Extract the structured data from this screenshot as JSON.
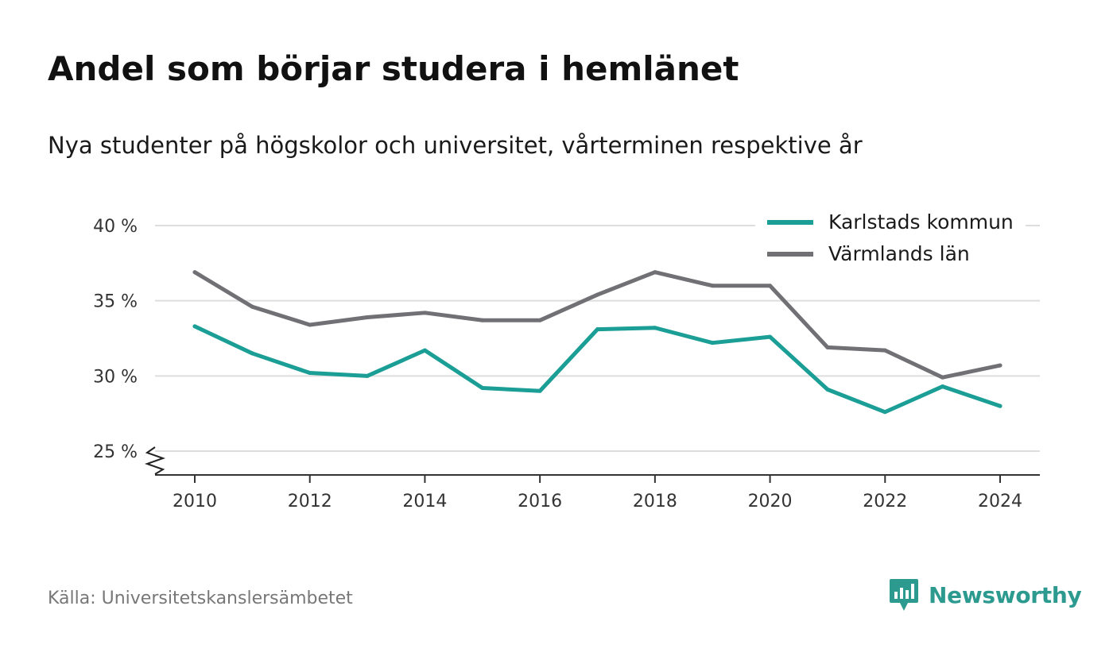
{
  "title": "Andel som börjar studera i hemlänet",
  "subtitle": "Nya studenter på högskolor och universitet, vårterminen respektive år",
  "source": "Källa: Universitetskanslersämbetet",
  "brand": {
    "name": "Newsworthy",
    "icon": "newsworthy-logo-icon",
    "color": "#2d9a8f"
  },
  "chart_data": {
    "type": "line",
    "x": [
      2010,
      2011,
      2012,
      2013,
      2014,
      2015,
      2016,
      2017,
      2018,
      2019,
      2020,
      2021,
      2022,
      2023,
      2024
    ],
    "x_ticks": [
      "2010",
      "2012",
      "2014",
      "2016",
      "2018",
      "2020",
      "2022",
      "2024"
    ],
    "y_ticks": [
      "25 %",
      "30 %",
      "35 %",
      "40 %"
    ],
    "ylim": [
      25,
      40
    ],
    "y_axis_break": true,
    "grid": true,
    "legend_position": "top-right",
    "series": [
      {
        "name": "Karlstads kommun",
        "color": "#1a9e95",
        "values": [
          33.3,
          31.5,
          30.2,
          30.0,
          31.7,
          29.2,
          29.0,
          33.1,
          33.2,
          32.2,
          32.6,
          29.1,
          27.6,
          29.3,
          28.0
        ]
      },
      {
        "name": "Värmlands län",
        "color": "#707075",
        "values": [
          36.9,
          34.6,
          33.4,
          33.9,
          34.2,
          33.7,
          33.7,
          35.4,
          36.9,
          36.0,
          36.0,
          31.9,
          31.7,
          29.9,
          30.7
        ]
      }
    ]
  }
}
